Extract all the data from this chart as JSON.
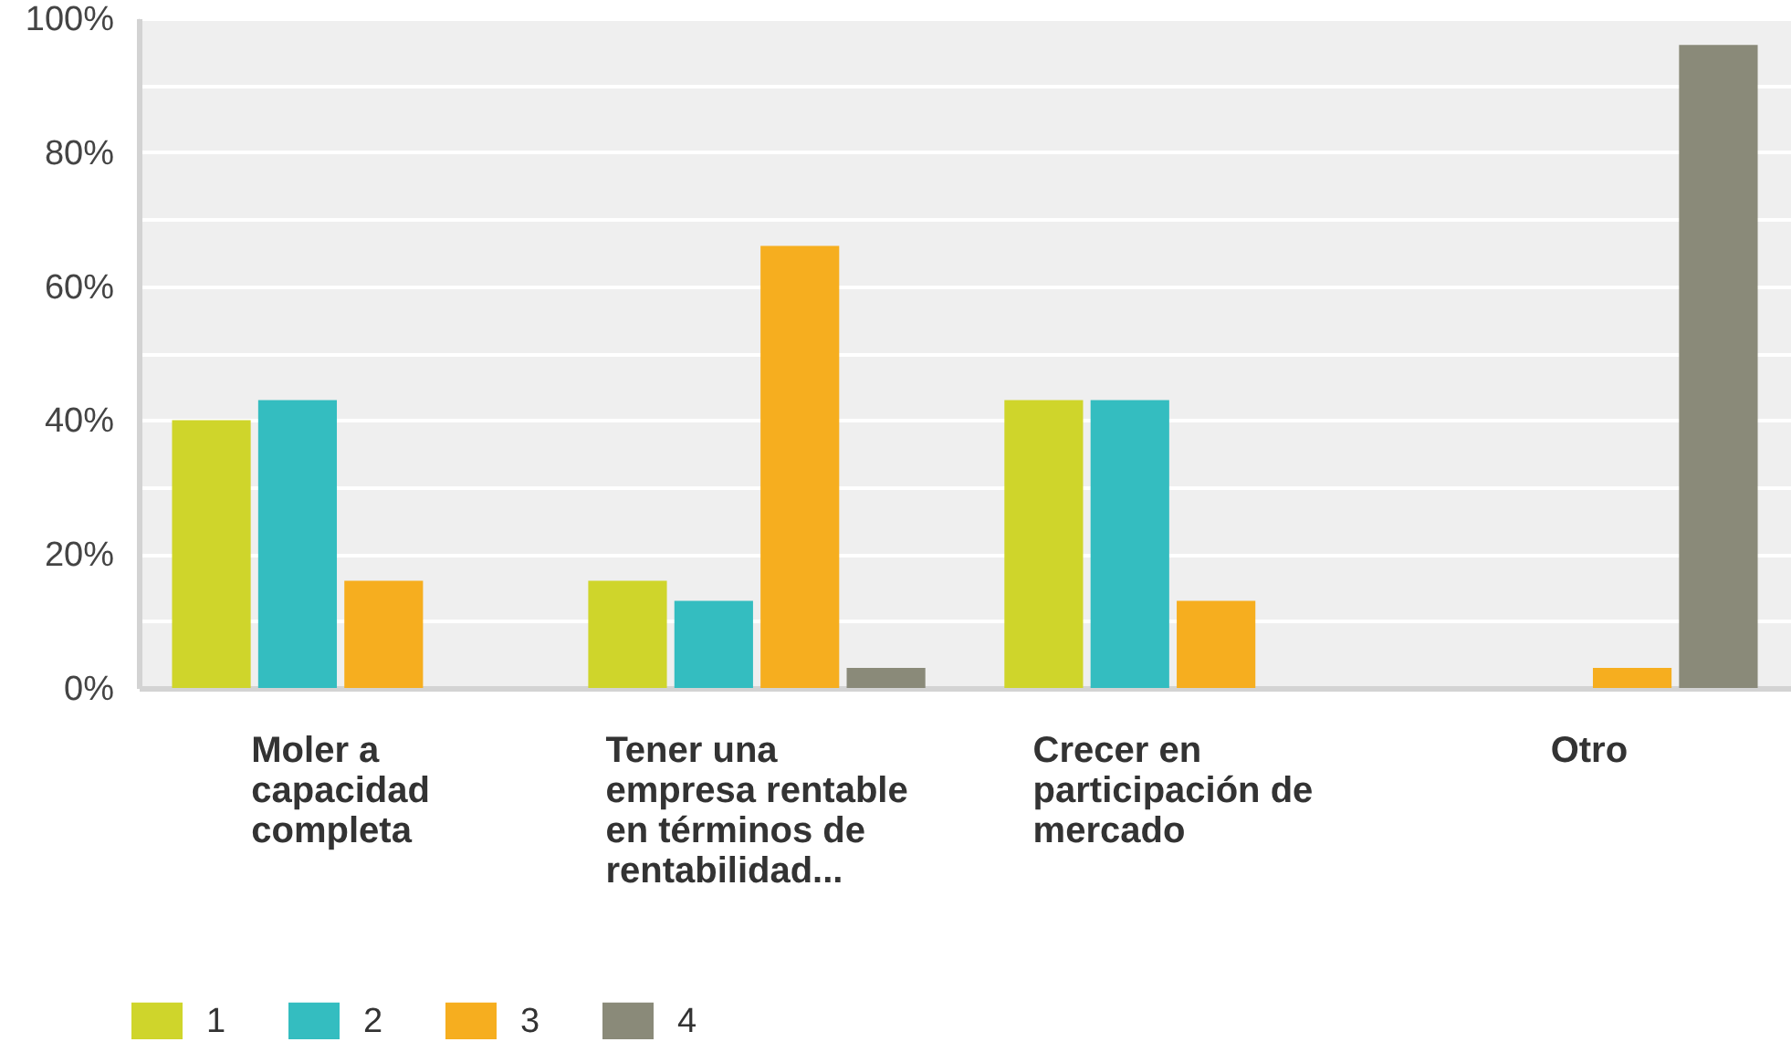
{
  "chart_data": {
    "type": "bar",
    "categories": [
      "Moler a capacidad completa",
      "Tener una empresa rentable en términos de rentabilidad...",
      "Crecer en participación de mercado",
      "Otro"
    ],
    "series": [
      {
        "name": "1",
        "color": "#cfd52b",
        "values": [
          40,
          16,
          43,
          0
        ]
      },
      {
        "name": "2",
        "color": "#34bdc0",
        "values": [
          43,
          13,
          43,
          0
        ]
      },
      {
        "name": "3",
        "color": "#f6ae1f",
        "values": [
          16,
          66,
          13,
          3
        ]
      },
      {
        "name": "4",
        "color": "#8a8a79",
        "values": [
          0,
          3,
          0,
          96
        ]
      }
    ],
    "ylim": [
      0,
      100
    ],
    "yticks": [
      {
        "value": 0,
        "label": "0%"
      },
      {
        "value": 10,
        "label": null
      },
      {
        "value": 20,
        "label": "20%"
      },
      {
        "value": 30,
        "label": null
      },
      {
        "value": 40,
        "label": "40%"
      },
      {
        "value": 50,
        "label": null
      },
      {
        "value": 60,
        "label": "60%"
      },
      {
        "value": 70,
        "label": null
      },
      {
        "value": 80,
        "label": "80%"
      },
      {
        "value": 90,
        "label": null
      },
      {
        "value": 100,
        "label": "100%"
      }
    ],
    "grid": true,
    "legend": "bottom left"
  }
}
